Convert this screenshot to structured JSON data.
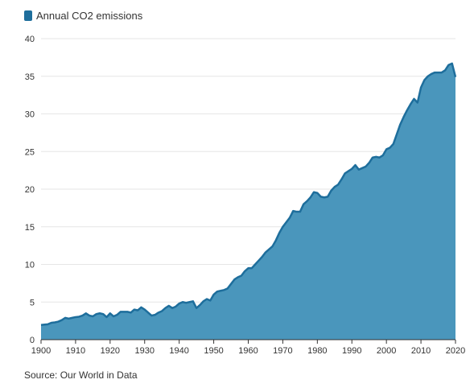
{
  "colors": {
    "area_fill": "#4a96bc",
    "line": "#1e6e9c",
    "grid": "#e6e6e6",
    "axis": "#333333"
  },
  "source_text": "Source: Our World in Data",
  "chart_data": {
    "type": "area",
    "legend": {
      "position": "top-left",
      "entries": [
        "Annual CO2 emissions"
      ]
    },
    "xlim": [
      1900,
      2020
    ],
    "ylim": [
      0,
      40
    ],
    "grid": true,
    "x_ticks": [
      1900,
      1910,
      1920,
      1930,
      1940,
      1950,
      1960,
      1970,
      1980,
      1990,
      2000,
      2010,
      2020
    ],
    "y_ticks": [
      0,
      5,
      10,
      15,
      20,
      25,
      30,
      35,
      40
    ],
    "series": [
      {
        "name": "Annual CO2 emissions",
        "x": [
          1900,
          1901,
          1902,
          1903,
          1904,
          1905,
          1906,
          1907,
          1908,
          1909,
          1910,
          1911,
          1912,
          1913,
          1914,
          1915,
          1916,
          1917,
          1918,
          1919,
          1920,
          1921,
          1922,
          1923,
          1924,
          1925,
          1926,
          1927,
          1928,
          1929,
          1930,
          1931,
          1932,
          1933,
          1934,
          1935,
          1936,
          1937,
          1938,
          1939,
          1940,
          1941,
          1942,
          1943,
          1944,
          1945,
          1946,
          1947,
          1948,
          1949,
          1950,
          1951,
          1952,
          1953,
          1954,
          1955,
          1956,
          1957,
          1958,
          1959,
          1960,
          1961,
          1962,
          1963,
          1964,
          1965,
          1966,
          1967,
          1968,
          1969,
          1970,
          1971,
          1972,
          1973,
          1974,
          1975,
          1976,
          1977,
          1978,
          1979,
          1980,
          1981,
          1982,
          1983,
          1984,
          1985,
          1986,
          1987,
          1988,
          1989,
          1990,
          1991,
          1992,
          1993,
          1994,
          1995,
          1996,
          1997,
          1998,
          1999,
          2000,
          2001,
          2002,
          2003,
          2004,
          2005,
          2006,
          2007,
          2008,
          2009,
          2010,
          2011,
          2012,
          2013,
          2014,
          2015,
          2016,
          2017,
          2018,
          2019,
          2020
        ],
        "values": [
          1.95,
          2.0,
          2.05,
          2.25,
          2.3,
          2.4,
          2.6,
          2.9,
          2.8,
          2.9,
          3.0,
          3.05,
          3.2,
          3.5,
          3.2,
          3.1,
          3.4,
          3.5,
          3.4,
          3.0,
          3.5,
          3.1,
          3.3,
          3.7,
          3.7,
          3.7,
          3.6,
          4.0,
          3.9,
          4.3,
          4.0,
          3.6,
          3.2,
          3.3,
          3.6,
          3.8,
          4.2,
          4.5,
          4.2,
          4.4,
          4.8,
          5.0,
          4.9,
          5.0,
          5.1,
          4.2,
          4.6,
          5.1,
          5.4,
          5.2,
          6.0,
          6.4,
          6.5,
          6.6,
          6.8,
          7.4,
          8.0,
          8.3,
          8.5,
          9.1,
          9.5,
          9.5,
          10.0,
          10.5,
          11.0,
          11.6,
          12.0,
          12.4,
          13.2,
          14.2,
          15.0,
          15.6,
          16.2,
          17.1,
          17.0,
          17.0,
          18.0,
          18.4,
          18.9,
          19.6,
          19.5,
          19.0,
          18.9,
          19.0,
          19.8,
          20.3,
          20.6,
          21.3,
          22.1,
          22.4,
          22.7,
          23.2,
          22.6,
          22.8,
          23.0,
          23.5,
          24.2,
          24.3,
          24.2,
          24.5,
          25.3,
          25.5,
          26.0,
          27.3,
          28.6,
          29.6,
          30.5,
          31.3,
          32.0,
          31.5,
          33.5,
          34.5,
          35.0,
          35.3,
          35.5,
          35.5,
          35.5,
          35.8,
          36.5,
          36.7,
          34.9
        ]
      }
    ]
  }
}
